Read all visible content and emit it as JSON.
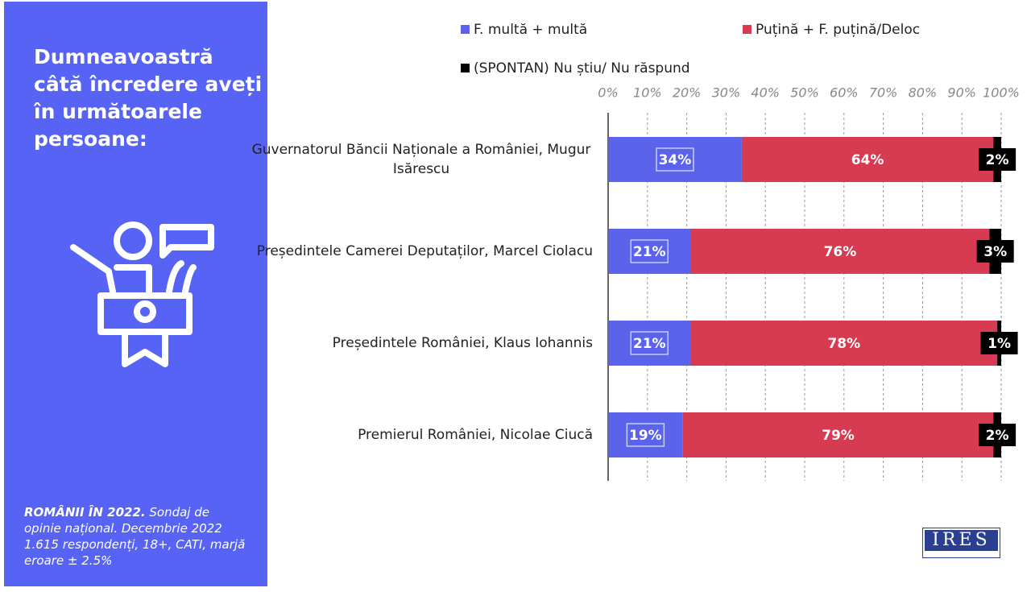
{
  "chart_data": {
    "type": "stacked-bar-horizontal",
    "title": "Dumneavoastră câtă încredere aveți în următoarele persoane:",
    "source_title": "ROMÂNII ÎN 2022.",
    "source": "Sondaj de opinie național. Decembrie 2022 1.615 respondenți, 18+, CATI, marjă eroare ± 2.5%",
    "logo": "IRES",
    "categories": [
      "Guvernatorul Băncii Naționale a României, Mugur Isărescu",
      "Președintele Camerei Deputaților, Marcel Ciolacu",
      "Președintele României, Klaus Iohannis",
      "Premierul României, Nicolae Ciucă"
    ],
    "series": [
      {
        "name": "F. multă + multă",
        "color": "#5a63ea",
        "values": [
          34,
          21,
          21,
          19
        ],
        "value_labels": [
          "34%",
          "21%",
          "21%",
          "19%"
        ]
      },
      {
        "name": "Puțină + F. puțină/Deloc",
        "color": "#d63b52",
        "values": [
          64,
          76,
          78,
          79
        ],
        "value_labels": [
          "64%",
          "76%",
          "78%",
          "79%"
        ]
      },
      {
        "name": "(SPONTAN) Nu știu/ Nu răspund",
        "color": "#000000",
        "values": [
          2,
          3,
          1,
          2
        ],
        "value_labels": [
          "2%",
          "3%",
          "1%",
          "2%"
        ]
      }
    ],
    "xlim": [
      0,
      100
    ],
    "xticks": [
      {
        "value": 0,
        "label": "0%"
      },
      {
        "value": 10,
        "label": "10%"
      },
      {
        "value": 20,
        "label": "20%"
      },
      {
        "value": 30,
        "label": "30%"
      },
      {
        "value": 40,
        "label": "40%"
      },
      {
        "value": 50,
        "label": "50%"
      },
      {
        "value": 60,
        "label": "60%"
      },
      {
        "value": 70,
        "label": "70%"
      },
      {
        "value": 80,
        "label": "80%"
      },
      {
        "value": 90,
        "label": "90%"
      },
      {
        "value": 100,
        "label": "100%"
      }
    ],
    "grid": true
  }
}
